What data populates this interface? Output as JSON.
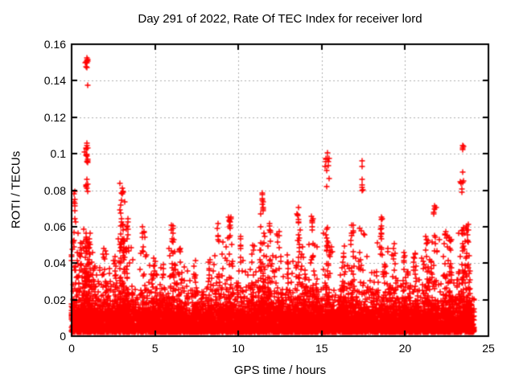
{
  "chart": {
    "title": "Day 291 of 2022, Rate Of TEC Index for receiver lord",
    "xlabel": "GPS time / hours",
    "ylabel": "ROTI / TECUs",
    "xlim": [
      0,
      25
    ],
    "ylim": [
      0,
      0.16
    ],
    "xticks": [
      {
        "v": 0,
        "label": "0"
      },
      {
        "v": 5,
        "label": "5"
      },
      {
        "v": 10,
        "label": "10"
      },
      {
        "v": 15,
        "label": "15"
      },
      {
        "v": 20,
        "label": "20"
      },
      {
        "v": 25,
        "label": "25"
      }
    ],
    "yticks": [
      {
        "v": 0,
        "label": "0"
      },
      {
        "v": 0.02,
        "label": "0.02"
      },
      {
        "v": 0.04,
        "label": "0.04"
      },
      {
        "v": 0.06,
        "label": "0.06"
      },
      {
        "v": 0.08,
        "label": "0.08"
      },
      {
        "v": 0.1,
        "label": "0.1"
      },
      {
        "v": 0.12,
        "label": "0.12"
      },
      {
        "v": 0.14,
        "label": "0.14"
      },
      {
        "v": 0.16,
        "label": "0.16"
      }
    ]
  },
  "chart_data": {
    "type": "scatter",
    "title": "Day 291 of 2022, Rate Of TEC Index for receiver lord",
    "xlabel": "GPS time / hours",
    "ylabel": "ROTI / TECUs",
    "xlim": [
      0,
      25
    ],
    "ylim": [
      0,
      0.16
    ],
    "grid": {
      "on": true,
      "color": "#b0b0b0",
      "dash": [
        2,
        3
      ]
    },
    "frame_color": "#000000",
    "marker": {
      "shape": "plus",
      "color": "#ff0000",
      "size": 7
    },
    "seed": 291,
    "x_range_hours": [
      0,
      24.15
    ],
    "baseline": {
      "n": 7000,
      "v0": 0.002,
      "scale": 0.0045,
      "cap": 0.028
    },
    "texture": {
      "n": 1500,
      "v0": 0.01,
      "scale": 0.006,
      "cap": 0.038
    },
    "clusters": [
      {
        "t": 0.15,
        "dt": 0.04,
        "vmin": 0.058,
        "vmax": 0.081,
        "n": 9
      },
      {
        "t": 0.5,
        "dt": 0.04,
        "vmin": 0.04,
        "vmax": 0.055,
        "n": 5
      },
      {
        "t": 0.92,
        "dt": 0.05,
        "vmin": 0.147,
        "vmax": 0.153,
        "n": 9
      },
      {
        "t": 0.95,
        "dt": 0.01,
        "vmin": 0.1375,
        "vmax": 0.1375,
        "n": 1
      },
      {
        "t": 0.93,
        "dt": 0.05,
        "vmin": 0.094,
        "vmax": 0.106,
        "n": 14
      },
      {
        "t": 0.92,
        "dt": 0.03,
        "vmin": 0.078,
        "vmax": 0.091,
        "n": 7
      },
      {
        "t": 1.4,
        "dt": 0.04,
        "vmin": 0.03,
        "vmax": 0.042,
        "n": 5
      },
      {
        "t": 2.0,
        "dt": 0.05,
        "vmin": 0.04,
        "vmax": 0.051,
        "n": 6
      },
      {
        "t": 2.6,
        "dt": 0.05,
        "vmin": 0.035,
        "vmax": 0.048,
        "n": 6
      },
      {
        "t": 3.0,
        "dt": 0.08,
        "vmin": 0.055,
        "vmax": 0.088,
        "n": 18
      },
      {
        "t": 3.35,
        "dt": 0.04,
        "vmin": 0.05,
        "vmax": 0.066,
        "n": 8
      },
      {
        "t": 4.3,
        "dt": 0.04,
        "vmin": 0.05,
        "vmax": 0.062,
        "n": 6
      },
      {
        "t": 5.0,
        "dt": 0.04,
        "vmin": 0.035,
        "vmax": 0.045,
        "n": 5
      },
      {
        "t": 5.5,
        "dt": 0.04,
        "vmin": 0.03,
        "vmax": 0.04,
        "n": 5
      },
      {
        "t": 6.05,
        "dt": 0.06,
        "vmin": 0.05,
        "vmax": 0.063,
        "n": 9
      },
      {
        "t": 6.5,
        "dt": 0.04,
        "vmin": 0.04,
        "vmax": 0.05,
        "n": 6
      },
      {
        "t": 7.4,
        "dt": 0.05,
        "vmin": 0.032,
        "vmax": 0.042,
        "n": 5
      },
      {
        "t": 8.25,
        "dt": 0.04,
        "vmin": 0.035,
        "vmax": 0.046,
        "n": 5
      },
      {
        "t": 8.8,
        "dt": 0.04,
        "vmin": 0.05,
        "vmax": 0.062,
        "n": 6
      },
      {
        "t": 9.5,
        "dt": 0.06,
        "vmin": 0.055,
        "vmax": 0.071,
        "n": 10
      },
      {
        "t": 10.15,
        "dt": 0.03,
        "vmin": 0.045,
        "vmax": 0.056,
        "n": 5
      },
      {
        "t": 10.9,
        "dt": 0.04,
        "vmin": 0.04,
        "vmax": 0.05,
        "n": 5
      },
      {
        "t": 11.45,
        "dt": 0.05,
        "vmin": 0.064,
        "vmax": 0.079,
        "n": 12
      },
      {
        "t": 11.9,
        "dt": 0.04,
        "vmin": 0.05,
        "vmax": 0.062,
        "n": 6
      },
      {
        "t": 12.4,
        "dt": 0.05,
        "vmin": 0.048,
        "vmax": 0.058,
        "n": 7
      },
      {
        "t": 13.0,
        "dt": 0.04,
        "vmin": 0.036,
        "vmax": 0.046,
        "n": 5
      },
      {
        "t": 13.6,
        "dt": 0.05,
        "vmin": 0.055,
        "vmax": 0.071,
        "n": 9
      },
      {
        "t": 14.0,
        "dt": 0.04,
        "vmin": 0.03,
        "vmax": 0.04,
        "n": 4
      },
      {
        "t": 14.45,
        "dt": 0.04,
        "vmin": 0.057,
        "vmax": 0.066,
        "n": 7
      },
      {
        "t": 15.35,
        "dt": 0.07,
        "vmin": 0.082,
        "vmax": 0.101,
        "n": 13
      },
      {
        "t": 16.3,
        "dt": 0.04,
        "vmin": 0.04,
        "vmax": 0.05,
        "n": 5
      },
      {
        "t": 16.85,
        "dt": 0.05,
        "vmin": 0.052,
        "vmax": 0.062,
        "n": 7
      },
      {
        "t": 17.42,
        "dt": 0.02,
        "vmin": 0.079,
        "vmax": 0.1005,
        "n": 7
      },
      {
        "t": 18.6,
        "dt": 0.05,
        "vmin": 0.055,
        "vmax": 0.066,
        "n": 8
      },
      {
        "t": 19.3,
        "dt": 0.05,
        "vmin": 0.042,
        "vmax": 0.052,
        "n": 6
      },
      {
        "t": 20.0,
        "dt": 0.05,
        "vmin": 0.038,
        "vmax": 0.047,
        "n": 5
      },
      {
        "t": 20.6,
        "dt": 0.05,
        "vmin": 0.04,
        "vmax": 0.05,
        "n": 5
      },
      {
        "t": 21.3,
        "dt": 0.05,
        "vmin": 0.045,
        "vmax": 0.055,
        "n": 6
      },
      {
        "t": 21.8,
        "dt": 0.05,
        "vmin": 0.066,
        "vmax": 0.073,
        "n": 7
      },
      {
        "t": 22.4,
        "dt": 0.05,
        "vmin": 0.05,
        "vmax": 0.06,
        "n": 6
      },
      {
        "t": 22.7,
        "dt": 0.05,
        "vmin": 0.04,
        "vmax": 0.055,
        "n": 6
      },
      {
        "t": 23.42,
        "dt": 0.05,
        "vmin": 0.078,
        "vmax": 0.091,
        "n": 8
      },
      {
        "t": 23.45,
        "dt": 0.04,
        "vmin": 0.102,
        "vmax": 0.1045,
        "n": 4
      },
      {
        "t": 23.7,
        "dt": 0.1,
        "vmin": 0.045,
        "vmax": 0.062,
        "n": 10
      }
    ]
  }
}
